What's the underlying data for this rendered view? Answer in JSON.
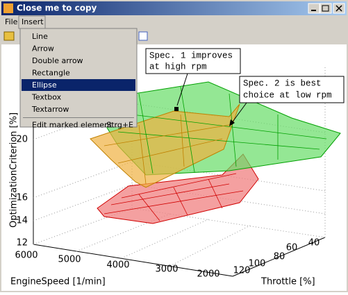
{
  "window": {
    "title": "Close me to copy"
  },
  "menu": [
    "File",
    "Insert"
  ],
  "insert_menu": {
    "items": [
      "Line",
      "Arrow",
      "Double arrow",
      "Rectangle",
      "Ellipse",
      "Textbox",
      "Textarrow"
    ],
    "selected": 4,
    "edit": {
      "label": "Edit marked element",
      "shortcut": "Strg+E"
    }
  },
  "plot": {
    "z_label": "OptimizationCriterion [%]",
    "z_ticks": [
      "12",
      "14",
      "16",
      "20"
    ],
    "x_label": "EngineSpeed [1/min]",
    "x_ticks": [
      "6000",
      "5000",
      "4000",
      "3000",
      "2000"
    ],
    "y_label": "Throttle [%]",
    "y_ticks": [
      "120",
      "100",
      "80",
      "60",
      "40"
    ],
    "annotations": [
      [
        "Spec. 1 improves",
        "at high rpm"
      ],
      [
        "Spec. 2 is best",
        "choice at low rpm"
      ]
    ]
  }
}
